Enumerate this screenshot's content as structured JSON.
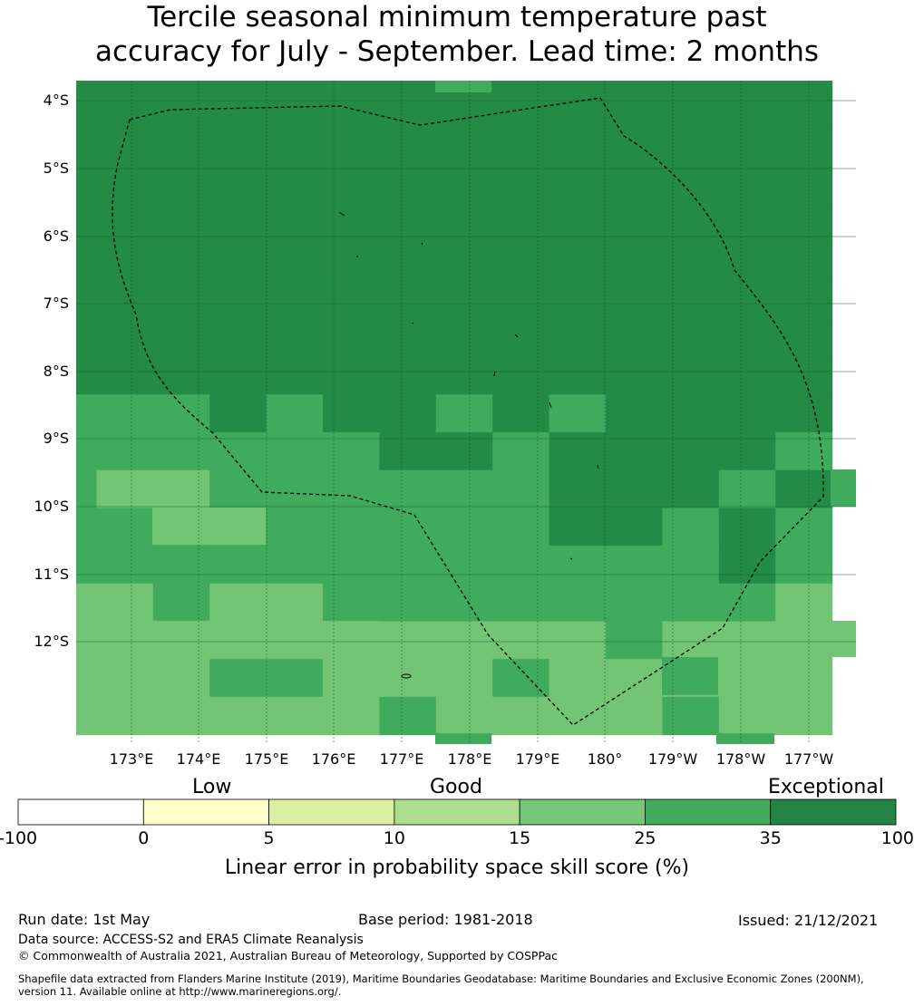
{
  "title": {
    "line1": "Tercile seasonal minimum temperature past",
    "line2": "accuracy for July - September. Lead time: 2 months"
  },
  "map": {
    "lat_labels": [
      "4°S",
      "5°S",
      "6°S",
      "7°S",
      "8°S",
      "9°S",
      "10°S",
      "11°S",
      "12°S"
    ],
    "lon_labels": [
      "173°E",
      "174°E",
      "175°E",
      "176°E",
      "177°E",
      "178°E",
      "179°E",
      "180°",
      "179°W",
      "178°W",
      "177°W"
    ],
    "gridline_color": "#1a5c2e",
    "boundary": "dashed black EEZ outline",
    "cell_color_key": {
      "A": "#238b45",
      "B": "#41ab5d",
      "C": "#74c476"
    },
    "cell_rows": [
      [
        "A",
        "A",
        "A",
        "A",
        "A",
        "A",
        "A",
        "A",
        "A",
        "A",
        "A",
        "A",
        "A",
        "A"
      ],
      [
        "A",
        "A",
        "A",
        "A",
        "A",
        "A",
        "A",
        "A",
        "A",
        "A",
        "A",
        "A",
        "A",
        "A"
      ],
      [
        "A",
        "A",
        "A",
        "A",
        "A",
        "A",
        "A",
        "A",
        "A",
        "A",
        "A",
        "A",
        "A",
        "A"
      ],
      [
        "A",
        "A",
        "A",
        "A",
        "A",
        "A",
        "A",
        "A",
        "A",
        "A",
        "A",
        "A",
        "A",
        "A"
      ],
      [
        "A",
        "A",
        "A",
        "A",
        "A",
        "A",
        "A",
        "A",
        "A",
        "A",
        "A",
        "A",
        "A",
        "A"
      ],
      [
        "A",
        "A",
        "A",
        "A",
        "A",
        "A",
        "A",
        "A",
        "A",
        "A",
        "A",
        "A",
        "A",
        "A"
      ],
      [
        "A",
        "A",
        "A",
        "A",
        "A",
        "A",
        "A",
        "A",
        "A",
        "A",
        "A",
        "A",
        "A",
        "A"
      ],
      [
        "A",
        "A",
        "A",
        "A",
        "A",
        "A",
        "A",
        "A",
        "A",
        "A",
        "A",
        "A",
        "A",
        "A"
      ],
      [
        "A",
        "A",
        "A",
        "A",
        "A",
        "A",
        "A",
        "A",
        "A",
        "A",
        "A",
        "A",
        "A",
        "A"
      ],
      [
        "B",
        "B",
        "B",
        "A",
        "B",
        "A",
        "A",
        "B",
        "A",
        "B",
        "A",
        "A",
        "A",
        "A"
      ],
      [
        "B",
        "B",
        "B",
        "B",
        "B",
        "B",
        "A",
        "A",
        "B",
        "A",
        "A",
        "A",
        "A",
        "B"
      ],
      [
        "B",
        "C",
        "C",
        "B",
        "B",
        "B",
        "B",
        "B",
        "B",
        "A",
        "A",
        "A",
        "B",
        "A"
      ],
      [
        "B",
        "B",
        "B",
        "B",
        "B",
        "B",
        "B",
        "B",
        "B",
        "A",
        "A",
        "B",
        "A",
        "B"
      ],
      [
        "B",
        "B",
        "B",
        "B",
        "B",
        "B",
        "B",
        "B",
        "B",
        "B",
        "B",
        "B",
        "A",
        "B"
      ],
      [
        "C",
        "C",
        "B",
        "C",
        "C",
        "B",
        "B",
        "B",
        "B",
        "B",
        "B",
        "B",
        "B",
        "C"
      ],
      [
        "C",
        "C",
        "C",
        "C",
        "C",
        "C",
        "C",
        "C",
        "C",
        "C",
        "B",
        "C",
        "C",
        "C"
      ],
      [
        "C",
        "C",
        "C",
        "B",
        "B",
        "C",
        "C",
        "C",
        "B",
        "C",
        "C",
        "C",
        "C",
        "C"
      ],
      [
        "C",
        "C",
        "C",
        "C",
        "C",
        "C",
        "B",
        "C",
        "C",
        "C",
        "C",
        "B",
        "C",
        "C"
      ]
    ]
  },
  "legend": {
    "categories": [
      "Low",
      "Good",
      "Exceptional"
    ],
    "ticks": [
      "-100",
      "0",
      "5",
      "10",
      "15",
      "25",
      "35",
      "100"
    ],
    "colors": [
      "#ffffff",
      "#ffffcc",
      "#d9f0a3",
      "#addd8e",
      "#78c679",
      "#41ab5d",
      "#238443"
    ],
    "title": "Linear error in probability space skill score (%)"
  },
  "footer": {
    "run_date": "Run date: 1st May",
    "base_period": "Base period: 1981-2018",
    "issued": "Issued: 21/12/2021",
    "data_source": "Data source: ACCESS-S2 and ERA5 Climate Reanalysis",
    "copyright": "© Commonwealth of Australia 2021, Australian Bureau of Meteorology, Supported by COSPPac",
    "shapefile_line1": "Shapefile data extracted from Flanders Marine Institute (2019), Maritime Boundaries Geodatabase: Maritime Boundaries and Exclusive Economic Zones (200NM),",
    "shapefile_line2": "version 11. Available online at http://www.marineregions.org/."
  }
}
